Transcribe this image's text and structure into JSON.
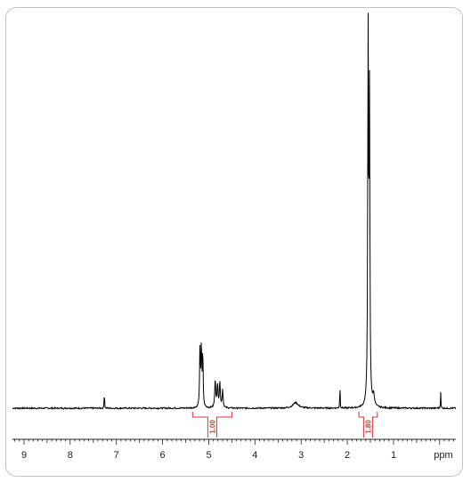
{
  "chart_data": {
    "type": "line",
    "x_unit": "ppm",
    "xlim": [
      9.25,
      -0.35
    ],
    "x_reversed": true,
    "ticks": [
      9,
      8,
      7,
      6,
      5,
      4,
      3,
      2,
      1
    ],
    "tick_labels": [
      "9",
      "8",
      "7",
      "6",
      "5",
      "4",
      "3",
      "2",
      "1"
    ],
    "unit_label": "ppm",
    "colors": {
      "trace": "#000000",
      "integral": "#e0303a",
      "axis": "#222222"
    },
    "peaks": [
      {
        "ppm": 7.26,
        "height": 0.07,
        "name": "peak-7-26"
      },
      {
        "ppm": 5.17,
        "height": 0.165,
        "name": "peak-5-17"
      },
      {
        "ppm": 4.84,
        "height": 0.08,
        "name": "peak-4-84"
      },
      {
        "ppm": 4.76,
        "height": 0.075,
        "name": "peak-4-76"
      },
      {
        "ppm": 3.12,
        "height": 0.015,
        "name": "peak-3-12"
      },
      {
        "ppm": 2.16,
        "height": 0.095,
        "name": "peak-2-16"
      },
      {
        "ppm": 1.55,
        "height": 1.0,
        "name": "peak-1-55"
      },
      {
        "ppm": -0.02,
        "height": 0.06,
        "name": "peak-0-00"
      }
    ],
    "integrals": [
      {
        "from": 5.35,
        "to": 4.5,
        "value": "1.00"
      },
      {
        "from": 1.75,
        "to": 1.35,
        "value": "1.80"
      }
    ]
  }
}
